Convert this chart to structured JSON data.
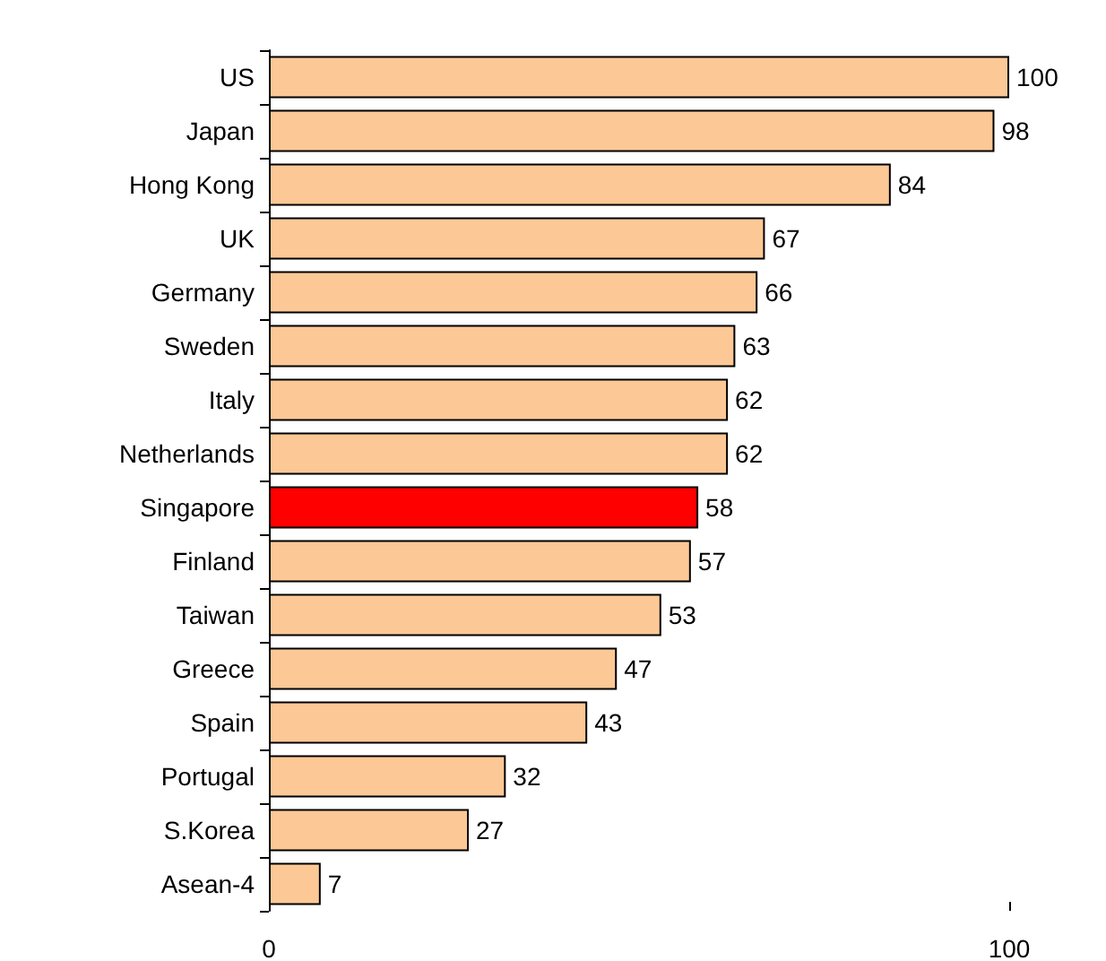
{
  "chart_data": {
    "type": "bar",
    "orientation": "horizontal",
    "categories": [
      "US",
      "Japan",
      "Hong Kong",
      "UK",
      "Germany",
      "Sweden",
      "Italy",
      "Netherlands",
      "Singapore",
      "Finland",
      "Taiwan",
      "Greece",
      "Spain",
      "Portugal",
      "S.Korea",
      "Asean-4"
    ],
    "values": [
      100,
      98,
      84,
      67,
      66,
      63,
      62,
      62,
      58,
      57,
      53,
      47,
      43,
      32,
      27,
      7
    ],
    "colors": [
      "#fcc896",
      "#fcc896",
      "#fcc896",
      "#fcc896",
      "#fcc896",
      "#fcc896",
      "#fcc896",
      "#fcc896",
      "#ff0000",
      "#fcc896",
      "#fcc896",
      "#fcc896",
      "#fcc896",
      "#fcc896",
      "#fcc896",
      "#fcc896"
    ],
    "xlim": [
      0,
      100
    ],
    "xticks": [
      0,
      100
    ],
    "data_labels": true,
    "grid": false
  }
}
